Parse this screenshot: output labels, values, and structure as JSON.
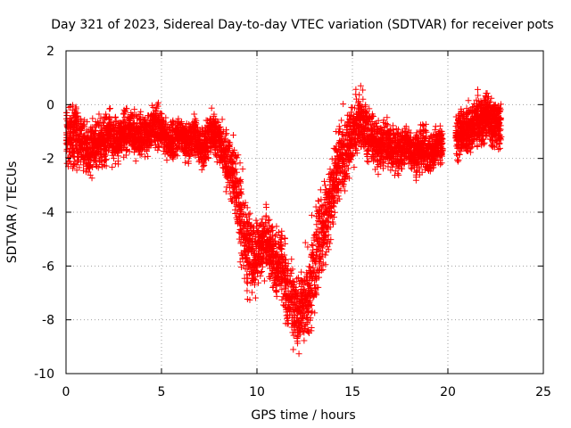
{
  "chart_data": {
    "type": "scatter",
    "title": "Day 321 of 2023, Sidereal Day-to-day VTEC variation (SDTVAR) for receiver pots",
    "xlabel": "GPS time / hours",
    "ylabel": "SDTVAR / TECUs",
    "xlim": [
      0,
      25
    ],
    "ylim": [
      -10,
      2
    ],
    "xticks": [
      0,
      5,
      10,
      15,
      20,
      25
    ],
    "yticks": [
      -10,
      -8,
      -6,
      -4,
      -2,
      0,
      2
    ],
    "xtick_labels": [
      "0",
      "5",
      "10",
      "15",
      "20",
      "25"
    ],
    "ytick_labels": [
      "-10",
      "-8",
      "-6",
      "-4",
      "-2",
      "0",
      "2"
    ],
    "grid": true,
    "marker": "+",
    "series": [
      {
        "name": "pots",
        "color": "#ff0000",
        "x": [
          0.0,
          0.25,
          0.5,
          0.75,
          1.0,
          1.25,
          1.5,
          1.75,
          2.0,
          2.25,
          2.5,
          2.75,
          3.0,
          3.25,
          3.5,
          3.75,
          4.0,
          4.25,
          4.5,
          4.75,
          5.0,
          5.25,
          5.5,
          5.75,
          6.0,
          6.25,
          6.5,
          6.75,
          7.0,
          7.25,
          7.5,
          7.75,
          8.0,
          8.25,
          8.5,
          8.75,
          9.0,
          9.25,
          9.5,
          9.75,
          10.0,
          10.25,
          10.5,
          10.75,
          11.0,
          11.25,
          11.5,
          11.75,
          12.0,
          12.25,
          12.5,
          12.75,
          13.0,
          13.25,
          13.5,
          13.75,
          14.0,
          14.25,
          14.5,
          14.75,
          15.0,
          15.25,
          15.5,
          15.75,
          16.0,
          16.25,
          16.5,
          16.75,
          17.0,
          17.25,
          17.5,
          17.75,
          18.0,
          18.25,
          18.5,
          18.75,
          19.0,
          19.25,
          19.5,
          19.75,
          20.4,
          20.6,
          20.8,
          21.0,
          21.2,
          21.4,
          21.6,
          21.8,
          22.0,
          22.2,
          22.4,
          22.6,
          22.8
        ],
        "center": [
          -1.3,
          -1.2,
          -1.1,
          -1.3,
          -1.6,
          -1.8,
          -1.5,
          -1.3,
          -1.4,
          -1.1,
          -1.2,
          -1.3,
          -1.1,
          -1.0,
          -0.9,
          -1.2,
          -1.0,
          -1.2,
          -0.9,
          -0.8,
          -1.0,
          -1.3,
          -1.4,
          -1.2,
          -1.1,
          -1.4,
          -1.3,
          -1.2,
          -1.5,
          -1.6,
          -1.2,
          -1.0,
          -1.4,
          -1.8,
          -2.2,
          -2.5,
          -3.5,
          -4.5,
          -5.3,
          -5.8,
          -5.5,
          -5.3,
          -5.0,
          -5.6,
          -6.0,
          -5.8,
          -6.7,
          -7.2,
          -7.5,
          -7.8,
          -7.3,
          -7.0,
          -6.0,
          -5.0,
          -4.5,
          -3.8,
          -3.0,
          -2.3,
          -1.8,
          -1.5,
          -1.0,
          -0.7,
          -0.8,
          -1.0,
          -1.3,
          -1.5,
          -1.5,
          -1.4,
          -1.6,
          -1.8,
          -1.7,
          -1.5,
          -1.6,
          -1.8,
          -1.7,
          -1.6,
          -1.8,
          -1.7,
          -1.5,
          -1.4,
          -1.2,
          -1.1,
          -1.0,
          -0.9,
          -1.0,
          -0.7,
          -0.5,
          -0.6,
          -0.4,
          -0.5,
          -0.8,
          -0.6,
          -0.9
        ],
        "spread": [
          1.1,
          1.2,
          1.2,
          1.1,
          1.0,
          1.0,
          1.0,
          1.1,
          1.0,
          0.9,
          1.0,
          0.9,
          0.9,
          0.8,
          0.8,
          0.9,
          0.8,
          0.8,
          0.8,
          0.8,
          0.8,
          0.7,
          0.7,
          0.8,
          0.7,
          0.8,
          0.7,
          0.8,
          0.8,
          0.8,
          0.8,
          0.9,
          0.9,
          1.0,
          1.1,
          1.2,
          1.6,
          1.8,
          1.7,
          1.4,
          1.2,
          1.2,
          1.1,
          1.2,
          1.3,
          1.3,
          1.5,
          1.6,
          1.5,
          1.6,
          1.6,
          1.8,
          1.9,
          1.8,
          1.7,
          1.6,
          1.5,
          1.4,
          1.5,
          1.3,
          1.3,
          1.3,
          1.2,
          1.1,
          0.9,
          0.9,
          0.9,
          0.9,
          0.9,
          0.9,
          0.8,
          0.8,
          0.8,
          0.8,
          0.9,
          0.8,
          0.8,
          0.8,
          0.8,
          0.8,
          0.9,
          0.9,
          0.9,
          0.9,
          0.9,
          0.9,
          1.0,
          0.9,
          0.9,
          0.9,
          0.9,
          0.9,
          0.9
        ]
      }
    ]
  }
}
